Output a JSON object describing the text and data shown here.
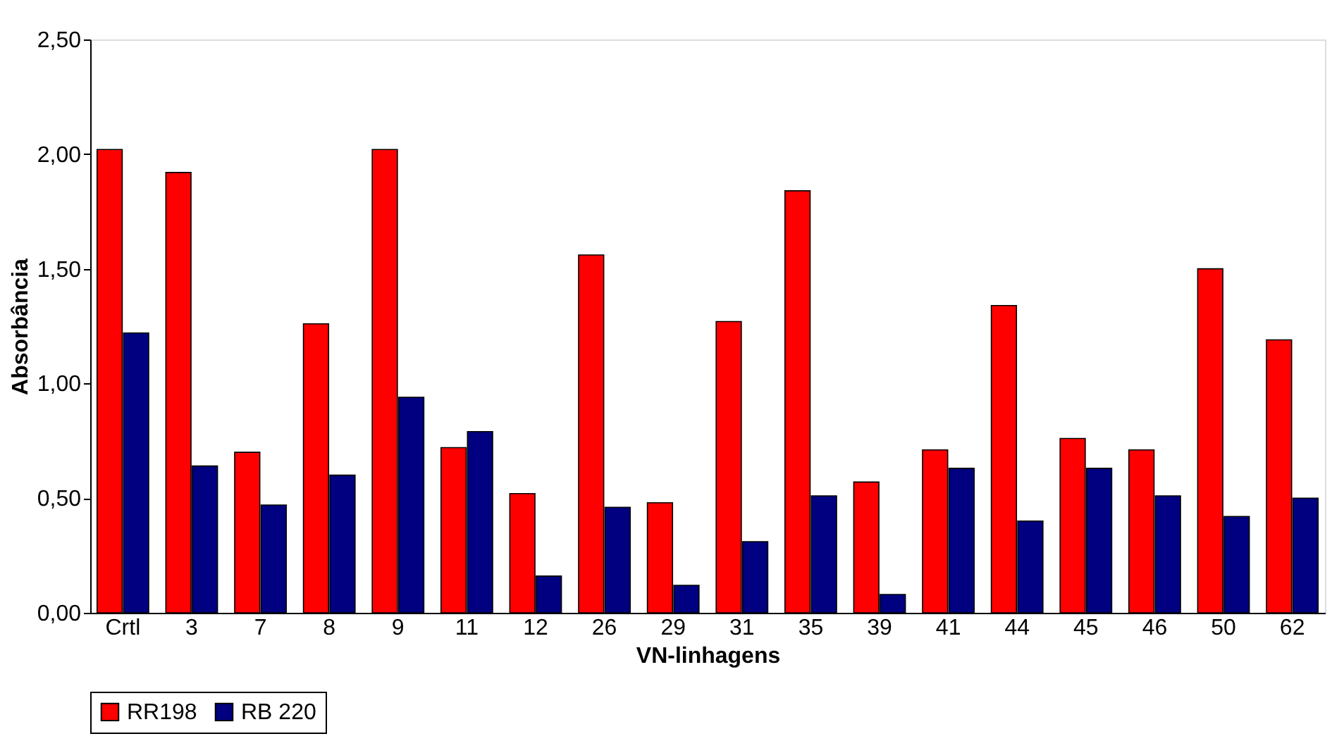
{
  "chart_data": {
    "type": "bar",
    "xlabel": "VN-linhagens",
    "ylabel": "Absorbância",
    "categories": [
      "Crtl",
      "3",
      "7",
      "8",
      "9",
      "11",
      "12",
      "26",
      "29",
      "31",
      "35",
      "39",
      "41",
      "44",
      "45",
      "46",
      "50",
      "62"
    ],
    "series": [
      {
        "name": "RR198",
        "color": "#ff0000",
        "values": [
          2.02,
          1.92,
          0.7,
          1.26,
          2.02,
          0.72,
          0.52,
          1.56,
          0.48,
          1.27,
          1.84,
          0.57,
          0.71,
          1.34,
          0.76,
          0.71,
          1.5,
          1.19
        ]
      },
      {
        "name": "RB 220",
        "color": "#000080",
        "values": [
          1.22,
          0.64,
          0.47,
          0.6,
          0.94,
          0.79,
          0.16,
          0.46,
          0.12,
          0.31,
          0.51,
          0.08,
          0.63,
          0.4,
          0.63,
          0.51,
          0.42,
          0.5
        ]
      }
    ],
    "ylim": [
      0,
      2.5
    ],
    "yticks": [
      {
        "value": 0,
        "label": "0,00"
      },
      {
        "value": 0.5,
        "label": "0,50"
      },
      {
        "value": 1,
        "label": "1,00"
      },
      {
        "value": 1.5,
        "label": "1,50"
      },
      {
        "value": 2,
        "label": "2,00"
      },
      {
        "value": 2.5,
        "label": "2,50"
      }
    ],
    "grid": false,
    "legend": "bottom"
  }
}
